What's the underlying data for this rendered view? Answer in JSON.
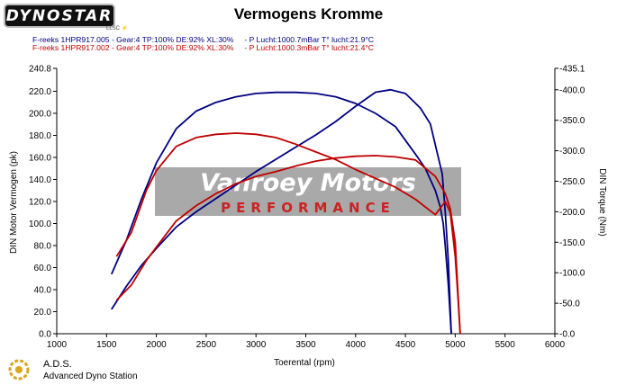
{
  "header": {
    "brand": "DYNOSTAR",
    "brand_sub": "LLSC ⚡",
    "title": "Vermogens Kromme"
  },
  "runs": [
    {
      "label": "F-reeks 1HPR917.005 - Gear:4 TP:100% DE:92% XL:30%     - P Lucht:1000.7mBar T° lucht:21.9°C",
      "color": "#000080"
    },
    {
      "label": "F-reeks 1HPR917.002 - Gear:4 TP:100% DE:92% XL:30%     - P Lucht:1000.3mBar T° lucht:21.4°C",
      "color": "#c00000"
    }
  ],
  "watermark": {
    "name": "Vanroey Motors",
    "sub": "PERFORMANCE"
  },
  "footer": {
    "name": "A.D.S.",
    "full": "Advanced Dyno Station",
    "icon": "ads-logo-icon"
  },
  "colors": {
    "run1": "#000080",
    "run2": "#c00000"
  },
  "chart_data": {
    "type": "line",
    "title": "Vermogens Kromme",
    "xlabel": "Toerental (rpm)",
    "ylabel": "DIN Motor Vermogen (pk)",
    "y2label": "DIN Torque (Nm)",
    "xlim": [
      1000,
      6000
    ],
    "ylim": [
      0,
      240.8
    ],
    "y2lim": [
      0,
      435.1
    ],
    "x_ticks": [
      "1000",
      "1500",
      "2000",
      "2500",
      "3000",
      "3500",
      "4000",
      "4500",
      "5000",
      "5500",
      "6000"
    ],
    "y_ticks": [
      "0.0",
      "20.0",
      "40.0",
      "60.0",
      "80.0",
      "100.0",
      "120.0",
      "140.0",
      "160.0",
      "180.0",
      "200.0",
      "220.0",
      "240.8"
    ],
    "y2_ticks": [
      "-0.0",
      "-50.0",
      "-100.0",
      "-150.0",
      "-200.0",
      "-250.0",
      "-300.0",
      "-350.0",
      "-400.0",
      "-435.1"
    ],
    "grid": false,
    "series": [
      {
        "name": "F-reeks 1HPR917.005",
        "quantity": "power",
        "axis": "left",
        "color": "#000080",
        "x": [
          1550,
          1700,
          1850,
          2000,
          2200,
          2400,
          2600,
          2800,
          3000,
          3200,
          3400,
          3600,
          3800,
          4000,
          4200,
          4400,
          4600,
          4700,
          4800,
          4850,
          4880,
          4900,
          4930,
          4960
        ],
        "y": [
          54,
          85,
          122,
          155,
          186,
          202,
          210,
          215,
          218,
          219,
          219,
          218,
          215,
          209,
          200,
          188,
          163,
          150,
          130,
          115,
          100,
          80,
          45,
          0
        ]
      },
      {
        "name": "F-reeks 1HPR917.005",
        "quantity": "torque",
        "axis": "right",
        "color": "#000080",
        "x": [
          1550,
          1700,
          1850,
          2000,
          2200,
          2400,
          2600,
          2800,
          3000,
          3200,
          3400,
          3600,
          3800,
          4000,
          4200,
          4350,
          4500,
          4650,
          4750,
          4820,
          4870,
          4900,
          4930,
          4960
        ],
        "y": [
          40,
          78,
          112,
          140,
          175,
          200,
          222,
          244,
          266,
          286,
          306,
          326,
          348,
          373,
          396,
          400,
          394,
          370,
          344,
          296,
          262,
          200,
          120,
          0
        ]
      },
      {
        "name": "F-reeks 1HPR917.002",
        "quantity": "power",
        "axis": "left",
        "color": "#c00000",
        "x": [
          1600,
          1750,
          1900,
          2000,
          2200,
          2400,
          2600,
          2800,
          3000,
          3200,
          3400,
          3600,
          3800,
          4000,
          4200,
          4400,
          4600,
          4800,
          4900,
          4950,
          5000,
          5030,
          5050
        ],
        "y": [
          70,
          92,
          130,
          148,
          170,
          178,
          181,
          182,
          181,
          178,
          172,
          165,
          158,
          149,
          141,
          133,
          122,
          108,
          120,
          110,
          70,
          30,
          0
        ]
      },
      {
        "name": "F-reeks 1HPR917.002",
        "quantity": "torque",
        "axis": "right",
        "color": "#c00000",
        "x": [
          1600,
          1750,
          1900,
          2000,
          2200,
          2400,
          2600,
          2800,
          3000,
          3200,
          3400,
          3600,
          3800,
          4000,
          4200,
          4400,
          4600,
          4800,
          4900,
          4950,
          5000,
          5030,
          5050
        ],
        "y": [
          55,
          80,
          120,
          142,
          185,
          210,
          230,
          246,
          258,
          266,
          275,
          283,
          288,
          291,
          292,
          290,
          285,
          258,
          230,
          205,
          150,
          60,
          0
        ]
      }
    ]
  }
}
